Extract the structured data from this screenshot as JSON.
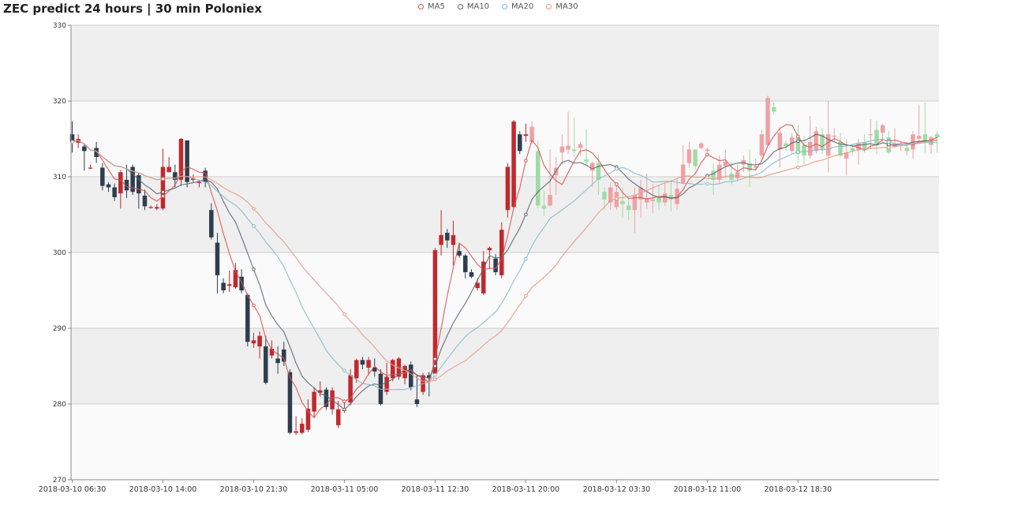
{
  "chart_data": {
    "type": "candlestick",
    "title": "ZEC predict 24 hours | 30 min Poloniex",
    "ylim": [
      270,
      330
    ],
    "y_ticks": [
      270,
      280,
      290,
      300,
      310,
      320,
      330
    ],
    "x_tick_labels": [
      "2018-03-10 06:30",
      "2018-03-10 14:00",
      "2018-03-10 21:30",
      "2018-03-11 05:00",
      "2018-03-11 12:30",
      "2018-03-11 20:00",
      "2018-03-12 03:30",
      "2018-03-12 11:00",
      "2018-03-12 18:30"
    ],
    "x_tick_index": [
      0,
      15,
      30,
      45,
      60,
      75,
      90,
      105,
      120
    ],
    "colors": {
      "up": "#c0292f",
      "down": "#2e3e4e",
      "predict_up": "#f0a1a4",
      "predict_down": "#9edca6",
      "ma5": "#d9534f",
      "ma10": "#5a6570",
      "ma20": "#86bcc8",
      "ma30": "#e59a86"
    },
    "legend": [
      {
        "label": "MA5",
        "color": "#d9534f"
      },
      {
        "label": "MA10",
        "color": "#5a6570"
      },
      {
        "label": "MA20",
        "color": "#86bcc8"
      },
      {
        "label": "MA30",
        "color": "#e59a86"
      }
    ],
    "history_count": 76,
    "candles": [
      [
        315.6,
        314.6,
        317.3,
        313.2
      ],
      [
        314.5,
        315.0,
        315.6,
        313.8
      ],
      [
        314.0,
        313.4,
        314.3,
        310.8
      ],
      [
        311.2,
        311.2,
        311.6,
        311.0
      ],
      [
        313.8,
        312.6,
        314.6,
        311.8
      ],
      [
        311.2,
        308.8,
        311.8,
        308.2
      ],
      [
        309.0,
        308.6,
        309.3,
        308.0
      ],
      [
        308.6,
        307.3,
        309.1,
        306.8
      ],
      [
        307.8,
        310.6,
        310.9,
        305.8
      ],
      [
        309.6,
        308.2,
        311.6,
        307.2
      ],
      [
        311.3,
        308.0,
        311.6,
        307.6
      ],
      [
        310.2,
        307.8,
        310.5,
        305.8
      ],
      [
        307.5,
        306.1,
        308.3,
        305.6
      ],
      [
        306.0,
        306.0,
        306.2,
        305.8
      ],
      [
        305.8,
        306.0,
        306.4,
        305.6
      ],
      [
        305.8,
        311.3,
        313.7,
        305.6
      ],
      [
        310.6,
        311.3,
        312.6,
        310.6
      ],
      [
        310.6,
        309.6,
        311.6,
        308.6
      ],
      [
        309.6,
        315.0,
        315.1,
        308.8
      ],
      [
        314.8,
        309.3,
        313.3,
        308.6
      ],
      [
        309.6,
        309.8,
        310.3,
        309.3
      ],
      [
        309.3,
        309.3,
        309.6,
        308.6
      ],
      [
        310.8,
        309.3,
        311.2,
        308.6
      ],
      [
        305.6,
        302.0,
        306.5,
        301.7
      ],
      [
        301.3,
        297.0,
        302.6,
        294.6
      ],
      [
        296.0,
        295.0,
        296.6,
        294.6
      ],
      [
        295.6,
        295.8,
        297.6,
        294.8
      ],
      [
        295.4,
        297.7,
        298.6,
        295.2
      ],
      [
        296.8,
        295.0,
        297.8,
        294.6
      ],
      [
        294.4,
        288.2,
        294.6,
        287.6
      ],
      [
        288.0,
        288.4,
        289.4,
        287.4
      ],
      [
        287.6,
        289.0,
        289.6,
        286.0
      ],
      [
        287.6,
        282.8,
        289.0,
        282.6
      ],
      [
        286.4,
        287.3,
        288.4,
        286.0
      ],
      [
        286.0,
        285.4,
        287.6,
        284.0
      ],
      [
        287.2,
        285.6,
        288.2,
        285.0
      ],
      [
        284.2,
        276.2,
        284.6,
        276.0
      ],
      [
        276.2,
        276.4,
        278.4,
        275.9
      ],
      [
        276.2,
        277.4,
        278.1,
        276.0
      ],
      [
        276.6,
        279.4,
        280.6,
        276.3
      ],
      [
        279.0,
        281.6,
        282.2,
        278.2
      ],
      [
        281.5,
        281.8,
        283.0,
        281.0
      ],
      [
        281.9,
        279.6,
        282.2,
        279.2
      ],
      [
        279.3,
        281.8,
        282.2,
        278.6
      ],
      [
        277.2,
        279.3,
        280.4,
        276.8
      ],
      [
        279.2,
        279.2,
        280.6,
        278.8
      ],
      [
        280.2,
        283.8,
        284.6,
        279.8
      ],
      [
        283.4,
        285.8,
        286.0,
        282.8
      ],
      [
        285.8,
        285.2,
        286.2,
        284.6
      ],
      [
        284.8,
        285.8,
        286.2,
        283.8
      ],
      [
        284.8,
        284.3,
        286.0,
        283.6
      ],
      [
        284.0,
        280.0,
        284.6,
        279.8
      ],
      [
        281.6,
        283.6,
        285.4,
        281.2
      ],
      [
        283.4,
        285.8,
        286.0,
        283.0
      ],
      [
        283.6,
        286.0,
        286.2,
        283.2
      ],
      [
        283.4,
        285.0,
        285.2,
        282.6
      ],
      [
        285.2,
        282.2,
        285.6,
        281.8
      ],
      [
        280.6,
        280.0,
        283.8,
        279.6
      ],
      [
        281.6,
        283.8,
        284.1,
        281.2
      ],
      [
        283.8,
        283.4,
        284.2,
        281.0
      ],
      [
        284.0,
        300.3,
        300.6,
        283.8
      ],
      [
        301.0,
        302.3,
        305.6,
        299.6
      ],
      [
        302.6,
        301.6,
        303.1,
        300.6
      ],
      [
        301.0,
        302.3,
        304.2,
        298.3
      ],
      [
        300.2,
        299.6,
        301.2,
        299.3
      ],
      [
        299.6,
        297.4,
        299.8,
        296.6
      ],
      [
        297.4,
        296.8,
        297.8,
        296.6
      ],
      [
        295.3,
        296.0,
        296.6,
        295.0
      ],
      [
        294.6,
        298.8,
        300.2,
        294.4
      ],
      [
        300.3,
        300.6,
        300.8,
        297.8
      ],
      [
        299.2,
        297.4,
        299.8,
        297.0
      ],
      [
        297.0,
        303.0,
        304.0,
        296.6
      ],
      [
        305.6,
        311.3,
        311.8,
        304.6
      ],
      [
        306.0,
        317.3,
        317.5,
        305.8
      ],
      [
        315.6,
        313.4,
        316.0,
        313.0
      ],
      [
        315.4,
        315.6,
        317.0,
        314.6
      ],
      [
        314.6,
        316.6,
        317.3,
        314.3
      ],
      [
        313.4,
        306.2,
        314.8,
        305.8
      ],
      [
        306.2,
        305.8,
        308.2,
        304.8
      ],
      [
        306.2,
        307.6,
        313.6,
        306.0
      ],
      [
        310.2,
        311.2,
        312.6,
        307.6
      ],
      [
        313.2,
        314.0,
        315.6,
        311.6
      ],
      [
        313.6,
        314.1,
        318.6,
        313.0
      ],
      [
        313.6,
        313.4,
        317.8,
        312.6
      ],
      [
        313.8,
        314.3,
        314.6,
        312.8
      ],
      [
        312.3,
        312.0,
        316.3,
        311.6
      ],
      [
        310.8,
        311.8,
        312.0,
        308.6
      ],
      [
        311.8,
        309.6,
        313.0,
        307.6
      ],
      [
        308.0,
        307.0,
        308.6,
        305.6
      ],
      [
        306.6,
        308.6,
        309.3,
        305.6
      ],
      [
        306.0,
        308.0,
        308.8,
        305.6
      ],
      [
        306.8,
        306.4,
        308.6,
        304.6
      ],
      [
        306.2,
        305.6,
        307.2,
        304.3
      ],
      [
        305.6,
        307.6,
        308.6,
        302.6
      ],
      [
        307.0,
        308.6,
        309.6,
        304.6
      ],
      [
        306.6,
        307.2,
        310.4,
        305.8
      ],
      [
        306.8,
        307.0,
        309.0,
        305.2
      ],
      [
        307.2,
        306.6,
        308.8,
        305.6
      ],
      [
        306.6,
        307.8,
        309.2,
        306.2
      ],
      [
        307.6,
        307.0,
        309.6,
        305.4
      ],
      [
        306.4,
        308.4,
        309.8,
        305.6
      ],
      [
        309.2,
        311.6,
        314.2,
        309.0
      ],
      [
        311.8,
        313.6,
        314.6,
        311.2
      ],
      [
        313.6,
        311.4,
        312.0,
        311.0
      ],
      [
        313.8,
        314.4,
        314.6,
        313.6
      ],
      [
        313.4,
        313.6,
        313.8,
        313.2
      ],
      [
        310.8,
        309.6,
        311.8,
        307.6
      ],
      [
        309.6,
        311.6,
        312.8,
        309.0
      ],
      [
        311.4,
        312.0,
        313.6,
        309.8
      ],
      [
        310.4,
        309.6,
        312.0,
        309.0
      ],
      [
        309.8,
        310.6,
        311.6,
        309.4
      ],
      [
        311.6,
        312.2,
        312.8,
        310.6
      ],
      [
        311.8,
        310.8,
        313.6,
        308.6
      ],
      [
        311.2,
        311.4,
        312.4,
        310.8
      ],
      [
        312.8,
        315.6,
        316.2,
        312.6
      ],
      [
        314.2,
        320.4,
        320.7,
        314.0
      ],
      [
        319.2,
        318.6,
        319.8,
        318.2
      ],
      [
        313.6,
        315.8,
        316.6,
        311.2
      ],
      [
        314.4,
        314.0,
        314.8,
        313.4
      ],
      [
        313.4,
        315.2,
        315.8,
        313.0
      ],
      [
        315.2,
        313.0,
        316.8,
        311.8
      ],
      [
        314.2,
        312.8,
        315.4,
        311.6
      ],
      [
        312.8,
        314.6,
        318.0,
        312.4
      ],
      [
        313.4,
        316.0,
        316.6,
        313.0
      ],
      [
        315.6,
        313.6,
        316.4,
        313.0
      ],
      [
        312.8,
        315.6,
        320.0,
        310.6
      ],
      [
        315.4,
        315.4,
        316.4,
        314.6
      ],
      [
        314.6,
        312.8,
        315.8,
        312.6
      ],
      [
        312.4,
        313.2,
        315.0,
        310.2
      ],
      [
        313.8,
        313.4,
        314.4,
        312.8
      ],
      [
        313.6,
        314.4,
        315.0,
        311.6
      ],
      [
        314.6,
        313.6,
        315.6,
        313.2
      ],
      [
        315.6,
        315.6,
        317.6,
        313.6
      ],
      [
        316.2,
        314.2,
        317.4,
        313.0
      ],
      [
        315.8,
        316.8,
        317.0,
        314.6
      ],
      [
        315.2,
        313.2,
        316.0,
        313.0
      ],
      [
        314.0,
        314.4,
        316.4,
        313.8
      ],
      [
        314.2,
        314.4,
        314.6,
        313.4
      ],
      [
        313.8,
        313.4,
        314.6,
        312.8
      ],
      [
        313.6,
        315.6,
        316.0,
        312.4
      ],
      [
        315.0,
        315.4,
        319.4,
        314.4
      ],
      [
        315.6,
        314.6,
        319.8,
        313.2
      ],
      [
        314.2,
        315.2,
        315.4,
        313.0
      ],
      [
        315.6,
        315.2,
        316.0,
        313.2
      ]
    ]
  }
}
